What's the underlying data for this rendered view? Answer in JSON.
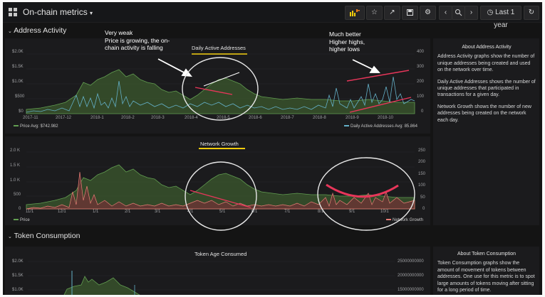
{
  "dashboard": {
    "title": "On-chain metrics",
    "time_range": "Last 1 year"
  },
  "rows": {
    "address_activity": "Address Activity",
    "token_consumption": "Token Consumption"
  },
  "panels": {
    "daily_active": {
      "title": "Daily Active Addresses",
      "left_ticks": [
        "$2.0K",
        "$1.5K",
        "$1.0K",
        "$500",
        "$0"
      ],
      "right_ticks": [
        "400",
        "300",
        "200",
        "100",
        "0"
      ],
      "x_ticks": [
        "2017-11",
        "2017-12",
        "2018-1",
        "2018-2",
        "2018-3",
        "2018-4",
        "2018-5",
        "2018-6",
        "2018-7",
        "2018-8",
        "2018-9",
        "2018-10"
      ],
      "legend_price": "Price  Avg: $742.982",
      "legend_series": "Daily Active Addresses  Avg: 85.864"
    },
    "network_growth": {
      "title": "Network Growth",
      "left_ticks": [
        "2.0 K",
        "1.5 K",
        "1.0 K",
        "500",
        "0"
      ],
      "right_ticks": [
        "250",
        "200",
        "150",
        "100",
        "50",
        "0"
      ],
      "x_ticks": [
        "11/1",
        "12/1",
        "1/1",
        "2/1",
        "3/1",
        "4/1",
        "5/1",
        "6/1",
        "7/1",
        "8/1",
        "9/1",
        "10/1"
      ],
      "legend_price": "Price",
      "legend_series": "Network Growth"
    },
    "token_age": {
      "title": "Token Age Consumed",
      "left_ticks": [
        "$2.0K",
        "$1.5K",
        "$1.0K"
      ],
      "right_ticks": [
        "25000000000",
        "20000000000",
        "15000000000"
      ]
    }
  },
  "info": {
    "address": {
      "title": "About Address Activity",
      "p1": "Address Activity graphs show the number of unique addresses being created and used on the network over time.",
      "p2": "Daily Active Addresses shows the number of unique addresses that participated in transactions for a given day.",
      "p3": "Network Growth shows the number of new addresses being created on the network each day."
    },
    "token": {
      "title": "About Token Consumption",
      "p1": "Token Consumption graphs show the amount of movement of tokens between addresses. One use for this metric is to spot large amounts of tokens moving after sitting for a long period of time."
    }
  },
  "annotations": {
    "weak": [
      "Very weak",
      "Price is growing, the on-",
      "chain activity is falling"
    ],
    "better": [
      "Much better",
      "Higher highs,",
      "higher lows"
    ]
  },
  "colors": {
    "price": "#629e51",
    "active": "#64b0c8",
    "growth": "#e87d76",
    "annotation": "#e8365a",
    "title_underline": "#f2cc0c"
  },
  "icons": [
    "grid-icon",
    "chevron-down-icon",
    "add-panel-icon",
    "star-icon",
    "share-icon",
    "save-icon",
    "gear-icon",
    "chevron-left-icon",
    "zoom-out-icon",
    "chevron-right-icon",
    "clock-icon",
    "refresh-icon"
  ]
}
